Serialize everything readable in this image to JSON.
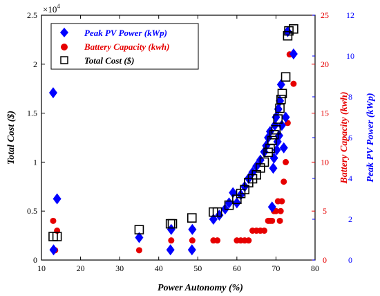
{
  "chart_data": {
    "type": "scatter",
    "xlabel": "Power Autonomy (%)",
    "xlim": [
      10,
      80
    ],
    "x_ticks": [
      "10",
      "20",
      "30",
      "40",
      "50",
      "60",
      "70",
      "80"
    ],
    "y_left": {
      "label": "Total Cost ($)",
      "lim": [
        0,
        25000
      ],
      "ticks": [
        "0",
        "0.5",
        "1",
        "1.5",
        "2",
        "2.5"
      ],
      "multiplier": "×10",
      "multiplier_exp": "4",
      "color": "#000000"
    },
    "y_right_inner": {
      "label": "Battery Capacity (kwh)",
      "lim": [
        0,
        25
      ],
      "ticks": [
        "0",
        "5",
        "10",
        "15",
        "20",
        "25"
      ],
      "color": "#e60000"
    },
    "y_right_outer": {
      "label": "Peak PV Power (kWp)",
      "lim": [
        0,
        12
      ],
      "ticks": [
        "0",
        "2",
        "4",
        "6",
        "8",
        "10",
        "12"
      ],
      "color": "#0000ff"
    },
    "legend_position": "top-left",
    "series": [
      {
        "name": "Peak PV Power (kWp)",
        "axis": "y_right_outer",
        "marker": "diamond",
        "color": "#0000ff",
        "points": [
          [
            13,
            8.2
          ],
          [
            13.1,
            0.5
          ],
          [
            14,
            3
          ],
          [
            35,
            1.1
          ],
          [
            43,
            0.5
          ],
          [
            43.2,
            1.5
          ],
          [
            48.5,
            0.5
          ],
          [
            48.6,
            1.5
          ],
          [
            54,
            2
          ],
          [
            55.5,
            2.2
          ],
          [
            57,
            2.5
          ],
          [
            58,
            2.8
          ],
          [
            59,
            3.3
          ],
          [
            60,
            2.8
          ],
          [
            61,
            3.2
          ],
          [
            62,
            3.6
          ],
          [
            63,
            4
          ],
          [
            64,
            4.3
          ],
          [
            65,
            4.6
          ],
          [
            66,
            4.9
          ],
          [
            67,
            5.3
          ],
          [
            67.5,
            5.6
          ],
          [
            68,
            6
          ],
          [
            68.5,
            6.3
          ],
          [
            69,
            2.6
          ],
          [
            69.3,
            4.5
          ],
          [
            69.5,
            5
          ],
          [
            69.7,
            6.6
          ],
          [
            70,
            7
          ],
          [
            70.2,
            5.4
          ],
          [
            70.4,
            5.8
          ],
          [
            70.6,
            7.4
          ],
          [
            70.8,
            6.1
          ],
          [
            71,
            7.8
          ],
          [
            71.3,
            8.6
          ],
          [
            71.5,
            6.6
          ],
          [
            72,
            5.5
          ],
          [
            72.5,
            7
          ],
          [
            73,
            11.2
          ],
          [
            74.5,
            10.1
          ]
        ]
      },
      {
        "name": "Battery Capacity (kwh)",
        "axis": "y_right_inner",
        "marker": "circle",
        "color": "#e60000",
        "points": [
          [
            13,
            4
          ],
          [
            13.5,
            1
          ],
          [
            14,
            3
          ],
          [
            35,
            1
          ],
          [
            43,
            1
          ],
          [
            43.2,
            2
          ],
          [
            48.5,
            1
          ],
          [
            48.6,
            2
          ],
          [
            54,
            2
          ],
          [
            55,
            2
          ],
          [
            60,
            2
          ],
          [
            61,
            2
          ],
          [
            62,
            2
          ],
          [
            63,
            2
          ],
          [
            64,
            3
          ],
          [
            65,
            3
          ],
          [
            66,
            3
          ],
          [
            67,
            3
          ],
          [
            68,
            4
          ],
          [
            68.5,
            4
          ],
          [
            69,
            4
          ],
          [
            69.5,
            5
          ],
          [
            70,
            5
          ],
          [
            70.5,
            6
          ],
          [
            71,
            4
          ],
          [
            71.2,
            5
          ],
          [
            71.5,
            6
          ],
          [
            72,
            8
          ],
          [
            72.5,
            10
          ],
          [
            73,
            14
          ],
          [
            73.5,
            21
          ],
          [
            74.5,
            18
          ]
        ]
      },
      {
        "name": "Total Cost ($)",
        "axis": "y_left",
        "marker": "square",
        "color": "#000000",
        "points": [
          [
            13,
            2400
          ],
          [
            14,
            2400
          ],
          [
            35,
            3100
          ],
          [
            43,
            3700
          ],
          [
            43.5,
            3700
          ],
          [
            48.5,
            4300
          ],
          [
            54,
            4900
          ],
          [
            55,
            4900
          ],
          [
            58,
            5600
          ],
          [
            60,
            6200
          ],
          [
            61,
            6800
          ],
          [
            62,
            7200
          ],
          [
            63,
            7900
          ],
          [
            64,
            8300
          ],
          [
            65,
            8700
          ],
          [
            66,
            9400
          ],
          [
            67,
            10000
          ],
          [
            68,
            11000
          ],
          [
            68.5,
            11400
          ],
          [
            69,
            12200
          ],
          [
            69.5,
            12800
          ],
          [
            70,
            13300
          ],
          [
            70.5,
            14400
          ],
          [
            71,
            15500
          ],
          [
            71.3,
            16400
          ],
          [
            71.6,
            17000
          ],
          [
            72.5,
            18700
          ],
          [
            73,
            22900
          ],
          [
            73.3,
            23400
          ],
          [
            74.5,
            23600
          ]
        ]
      }
    ]
  }
}
